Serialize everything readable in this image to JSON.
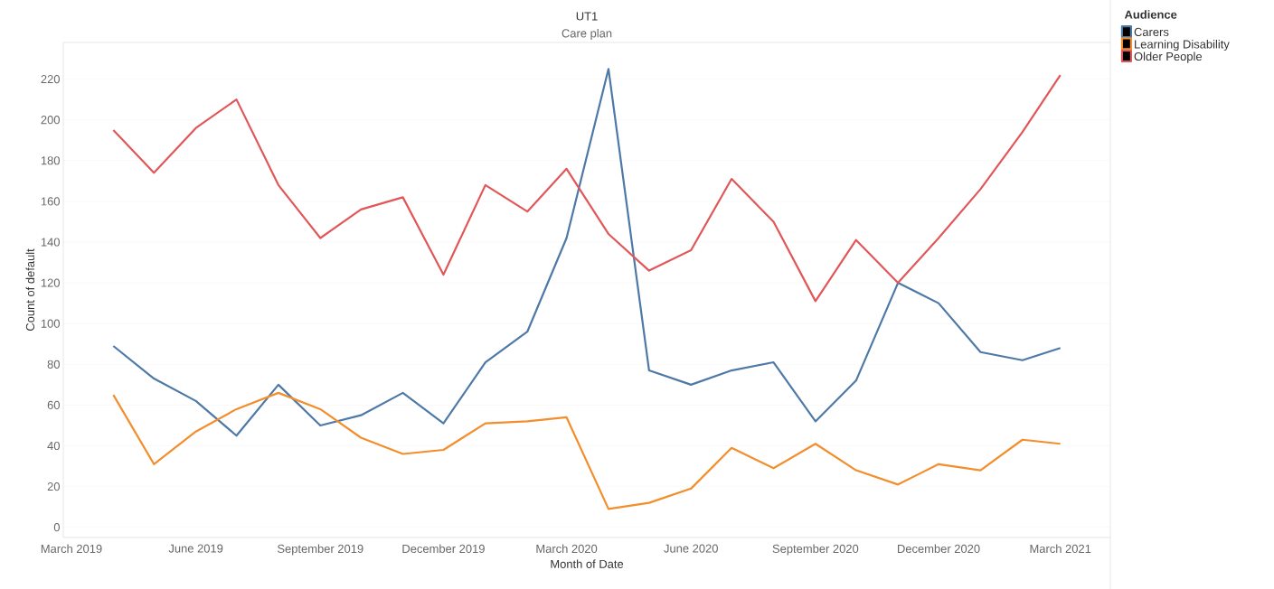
{
  "chart_data": {
    "type": "line",
    "title": "UT1",
    "subtitle": "Care plan",
    "xlabel": "Month of Date",
    "ylabel": "Count of default",
    "legend_title": "Audience",
    "x": [
      "2019-04",
      "2019-05",
      "2019-06",
      "2019-07",
      "2019-08",
      "2019-09",
      "2019-10",
      "2019-11",
      "2019-12",
      "2020-01",
      "2020-02",
      "2020-03",
      "2020-04",
      "2020-05",
      "2020-06",
      "2020-07",
      "2020-08",
      "2020-09",
      "2020-10",
      "2020-11",
      "2020-12",
      "2021-01",
      "2021-02",
      "2021-03"
    ],
    "series": [
      {
        "name": "Carers",
        "color": "#4e79a7",
        "values": [
          89,
          73,
          62,
          45,
          70,
          50,
          55,
          66,
          51,
          81,
          96,
          142,
          225,
          77,
          70,
          77,
          81,
          52,
          72,
          120,
          110,
          86,
          82,
          88
        ]
      },
      {
        "name": "Learning Disability",
        "color": "#f28e2b",
        "values": [
          65,
          31,
          47,
          58,
          66,
          58,
          44,
          36,
          38,
          51,
          52,
          54,
          9,
          12,
          19,
          39,
          29,
          41,
          28,
          21,
          31,
          28,
          43,
          41
        ]
      },
      {
        "name": "Older People",
        "color": "#e15759",
        "values": [
          195,
          174,
          196,
          210,
          168,
          142,
          156,
          162,
          124,
          168,
          155,
          176,
          144,
          126,
          136,
          171,
          150,
          111,
          141,
          120,
          142,
          166,
          194,
          222
        ]
      }
    ],
    "xlim": [
      "2019-02-23",
      "2021-04-07"
    ],
    "xticks": [
      {
        "value": "2019-03",
        "label": "March 2019"
      },
      {
        "value": "2019-06",
        "label": "June 2019"
      },
      {
        "value": "2019-09",
        "label": "September 2019"
      },
      {
        "value": "2019-12",
        "label": "December 2019"
      },
      {
        "value": "2020-03",
        "label": "March 2020"
      },
      {
        "value": "2020-06",
        "label": "June 2020"
      },
      {
        "value": "2020-09",
        "label": "September 2020"
      },
      {
        "value": "2020-12",
        "label": "December 2020"
      },
      {
        "value": "2021-03",
        "label": "March 2021"
      }
    ],
    "ylim": [
      -5,
      238
    ],
    "yticks": [
      0,
      20,
      40,
      60,
      80,
      100,
      120,
      140,
      160,
      180,
      200,
      220
    ],
    "grid": "y",
    "legend": "right",
    "marker": "none",
    "line_style": "solid"
  }
}
